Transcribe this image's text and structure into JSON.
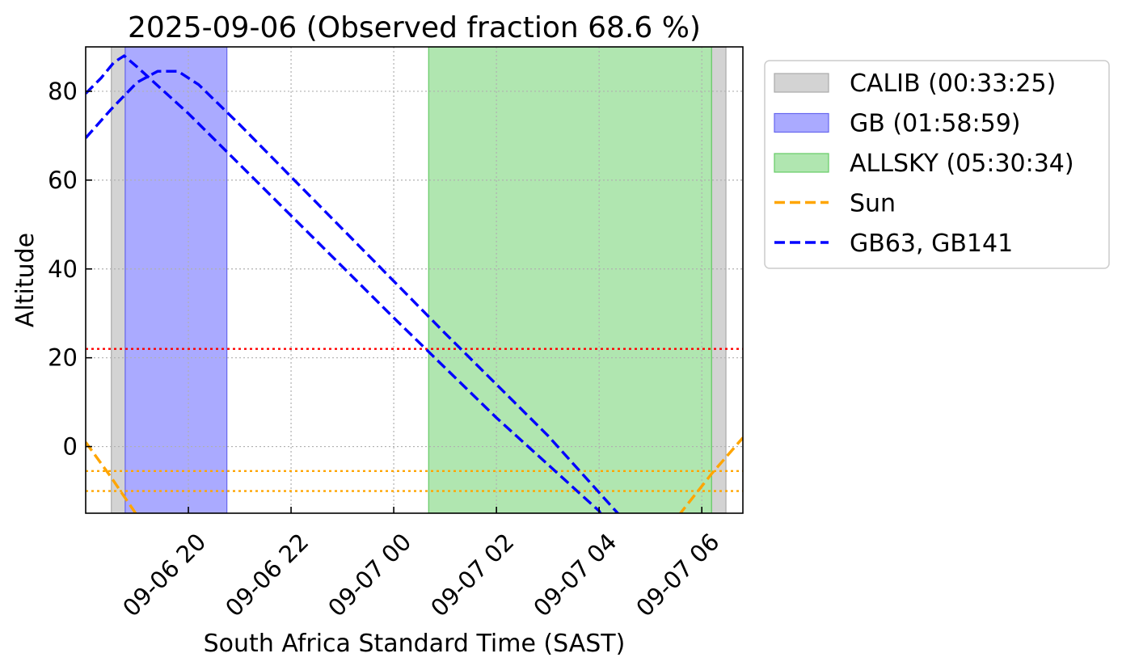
{
  "chart_data": {
    "type": "area",
    "title": "2025-09-06 (Observed fraction 68.6 %)",
    "xlabel": "South Africa Standard Time (SAST)",
    "ylabel": "Altitude",
    "xlim_hours": [
      18.0,
      30.8
    ],
    "ylim": [
      -15,
      90
    ],
    "grid": true,
    "legend_position": "outside-right",
    "x_ticks": [
      {
        "hour": 20,
        "label": "09-06 20"
      },
      {
        "hour": 22,
        "label": "09-06 22"
      },
      {
        "hour": 24,
        "label": "09-07 00"
      },
      {
        "hour": 26,
        "label": "09-07 02"
      },
      {
        "hour": 28,
        "label": "09-07 04"
      },
      {
        "hour": 30,
        "label": "09-07 06"
      }
    ],
    "y_ticks": [
      {
        "value": 0,
        "label": "0"
      },
      {
        "value": 20,
        "label": "20"
      },
      {
        "value": 40,
        "label": "40"
      },
      {
        "value": 60,
        "label": "60"
      },
      {
        "value": 80,
        "label": "80"
      }
    ],
    "spans": [
      {
        "name": "CALIB (00:33:25)",
        "color": "#d3d3d3",
        "edge": "#a9a9a9",
        "ranges": [
          [
            18.5,
            18.77
          ],
          [
            30.19,
            30.47
          ]
        ]
      },
      {
        "name": "GB (01:58:59)",
        "color": "#aaaaff",
        "edge": "#6666ee",
        "ranges": [
          [
            18.77,
            20.75
          ]
        ]
      },
      {
        "name": "ALLSKY (05:30:34)",
        "color": "#b0e6b0",
        "edge": "#66cc66",
        "ranges": [
          [
            24.68,
            30.19
          ]
        ]
      }
    ],
    "series": [
      {
        "name": "Sun",
        "color": "#ffa500",
        "style": "dashed",
        "segments": [
          [
            [
              18.0,
              1
            ],
            [
              18.5,
              -7
            ],
            [
              19.0,
              -15.5
            ]
          ],
          [
            [
              29.55,
              -15.5
            ],
            [
              30.2,
              -6
            ],
            [
              30.8,
              2
            ]
          ]
        ]
      },
      {
        "name": "GB63, GB141",
        "color": "#0000ff",
        "style": "dashed",
        "segments": [
          [
            [
              18.0,
              79.5
            ],
            [
              18.3,
              83
            ],
            [
              18.55,
              86.5
            ],
            [
              18.75,
              88
            ],
            [
              19.0,
              85.5
            ],
            [
              20.0,
              75
            ],
            [
              22.0,
              52
            ],
            [
              24.0,
              29
            ],
            [
              26.0,
              6.5
            ],
            [
              28.0,
              -14.5
            ],
            [
              28.05,
              -15.5
            ]
          ],
          [
            [
              18.0,
              69.5
            ],
            [
              18.5,
              76
            ],
            [
              19.0,
              82
            ],
            [
              19.4,
              84.5
            ],
            [
              19.8,
              84.5
            ],
            [
              20.2,
              81.5
            ],
            [
              21.0,
              72.5
            ],
            [
              23.0,
              49
            ],
            [
              25.0,
              25.5
            ],
            [
              27.0,
              2.5
            ],
            [
              28.4,
              -15.5
            ]
          ]
        ]
      }
    ],
    "hlines": [
      {
        "y": 22,
        "color": "#ff0000",
        "style": "dotted"
      },
      {
        "y": -5.5,
        "color": "#ffa500",
        "style": "dotted"
      },
      {
        "y": -10,
        "color": "#ffa500",
        "style": "dotted"
      }
    ]
  }
}
